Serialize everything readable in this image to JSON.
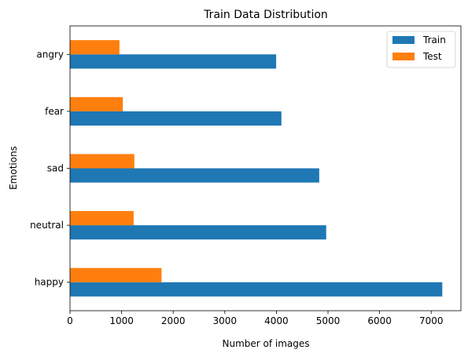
{
  "chart_data": {
    "type": "bar",
    "orientation": "horizontal",
    "title": "Train Data Distribution",
    "xlabel": "Number of images",
    "ylabel": "Emotions",
    "categories": [
      "happy",
      "neutral",
      "sad",
      "fear",
      "angry"
    ],
    "series": [
      {
        "name": "Train",
        "color": "#1f77b4",
        "values": [
          7215,
          4965,
          4830,
          4097,
          3995
        ]
      },
      {
        "name": "Test",
        "color": "#ff7f0e",
        "values": [
          1774,
          1233,
          1247,
          1024,
          958
        ]
      }
    ],
    "xlim": [
      0,
      7576
    ],
    "xticks": [
      0,
      1000,
      2000,
      3000,
      4000,
      5000,
      6000,
      7000
    ],
    "grid": false,
    "legend_position": "top-right"
  }
}
